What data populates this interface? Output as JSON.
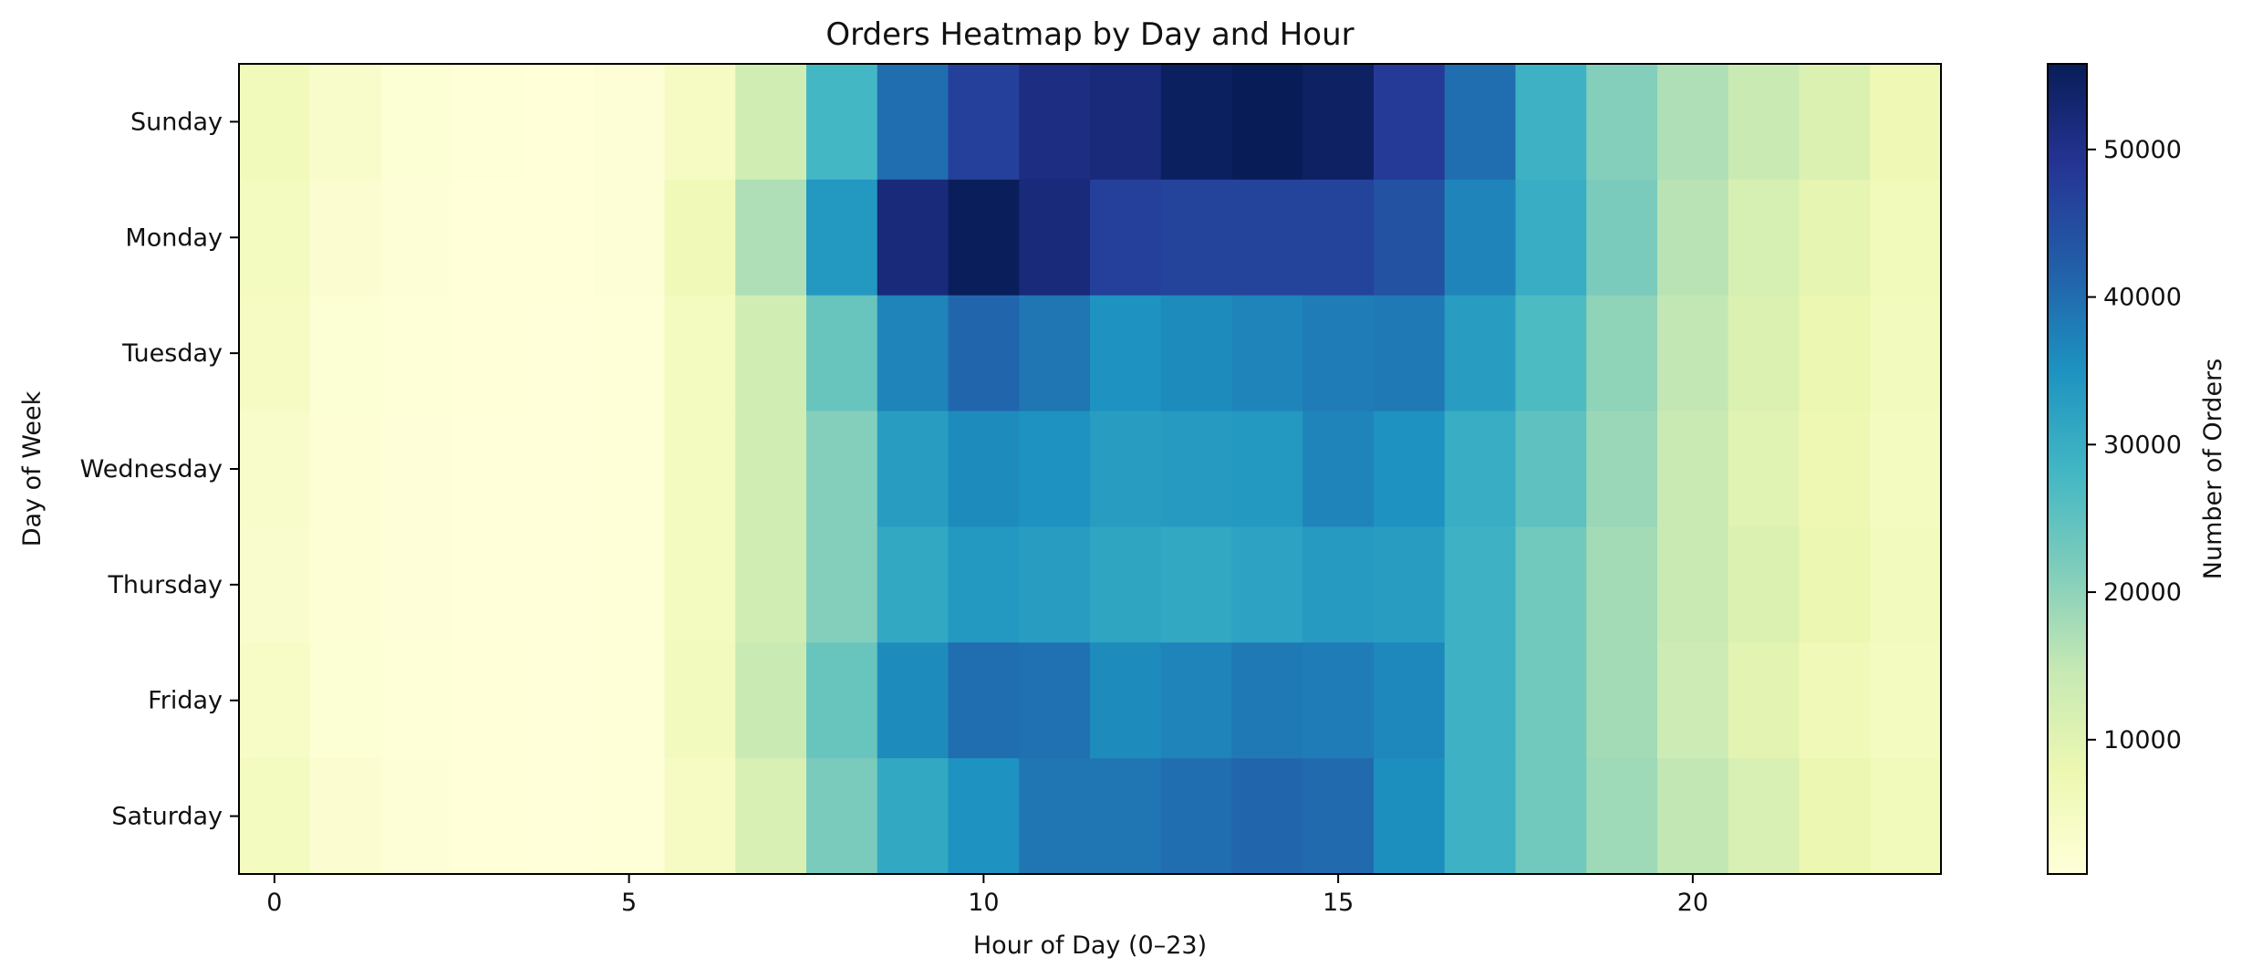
{
  "chart_data": {
    "type": "heatmap",
    "title": "Orders Heatmap by Day and Hour",
    "xlabel": "Hour of Day (0–23)",
    "ylabel": "Day of Week",
    "colorbar_label": "Number of Orders",
    "x": [
      0,
      1,
      2,
      3,
      4,
      5,
      6,
      7,
      8,
      9,
      10,
      11,
      12,
      13,
      14,
      15,
      16,
      17,
      18,
      19,
      20,
      21,
      22,
      23
    ],
    "x_ticks": [
      0,
      5,
      10,
      15,
      20
    ],
    "y": [
      "Sunday",
      "Monday",
      "Tuesday",
      "Wednesday",
      "Thursday",
      "Friday",
      "Saturday"
    ],
    "colorbar_ticks": [
      10000,
      20000,
      30000,
      40000,
      50000
    ],
    "color_range": [
      900,
      55800
    ],
    "colormap": "YlGnBu",
    "colormap_stops": [
      "#ffffd9",
      "#edf8b1",
      "#c7e9b4",
      "#7fcdbb",
      "#41b6c4",
      "#1d91c0",
      "#225ea8",
      "#253494",
      "#081d58"
    ],
    "values": [
      [
        6000,
        3500,
        2000,
        1300,
        1000,
        1500,
        4500,
        13000,
        28000,
        40000,
        47000,
        51000,
        52000,
        55000,
        55800,
        54500,
        48000,
        40000,
        29000,
        21000,
        17000,
        14000,
        11000,
        7000
      ],
      [
        5000,
        2500,
        1500,
        1000,
        1000,
        1500,
        6500,
        17000,
        34000,
        52000,
        55500,
        52000,
        47000,
        46500,
        46500,
        46500,
        44000,
        37000,
        30000,
        22000,
        16000,
        12000,
        9000,
        6000
      ],
      [
        4500,
        2000,
        1300,
        1000,
        900,
        1200,
        5000,
        13000,
        24000,
        37000,
        41000,
        39000,
        35000,
        36000,
        37000,
        38000,
        38500,
        33000,
        27000,
        20000,
        15000,
        11000,
        8000,
        5500
      ],
      [
        3500,
        1800,
        1100,
        900,
        900,
        1200,
        5000,
        13000,
        21000,
        33000,
        36000,
        35000,
        33000,
        33500,
        34000,
        37000,
        35000,
        30000,
        25000,
        19000,
        14000,
        10000,
        7500,
        5000
      ],
      [
        3000,
        1700,
        1100,
        900,
        900,
        1200,
        5000,
        13000,
        21000,
        31000,
        34000,
        33000,
        31500,
        31000,
        32000,
        33500,
        33000,
        29000,
        23000,
        18000,
        14000,
        11000,
        8000,
        5500
      ],
      [
        4000,
        2000,
        1200,
        1000,
        900,
        1300,
        5500,
        14000,
        24000,
        36000,
        40000,
        39500,
        36000,
        37000,
        38500,
        38000,
        36500,
        29000,
        23000,
        18000,
        13500,
        9500,
        6500,
        5000
      ],
      [
        5000,
        2500,
        1500,
        1000,
        900,
        1200,
        4500,
        11500,
        22000,
        31000,
        35000,
        39000,
        39000,
        40000,
        41000,
        40500,
        35500,
        29000,
        23000,
        18500,
        15000,
        11500,
        8000,
        6000
      ]
    ]
  }
}
